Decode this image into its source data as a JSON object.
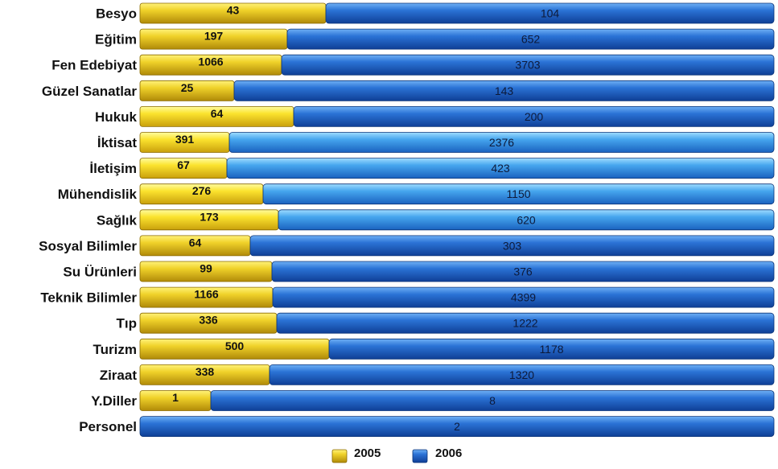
{
  "chart_data": {
    "type": "bar",
    "orientation": "horizontal",
    "stacked": true,
    "normalized": true,
    "categories": [
      "Besyo",
      "Eğitim",
      "Fen Edebiyat",
      "Güzel Sanatlar",
      "Hukuk",
      "İktisat",
      "İletişim",
      "Mühendislik",
      "Sağlık",
      "Sosyal Bilimler",
      "Su Ürünleri",
      "Teknik Bilimler",
      "Tıp",
      "Turizm",
      "Ziraat",
      "Y.Diller",
      "Personel"
    ],
    "series": [
      {
        "name": "2005",
        "values": [
          43,
          197,
          1066,
          25,
          64,
          391,
          67,
          276,
          173,
          64,
          99,
          1166,
          336,
          500,
          338,
          1,
          null
        ]
      },
      {
        "name": "2006",
        "values": [
          104,
          652,
          3703,
          143,
          200,
          2376,
          423,
          1150,
          620,
          303,
          376,
          4399,
          1222,
          1178,
          1320,
          8,
          2
        ]
      }
    ],
    "value_labels_a": [
      "43",
      "197",
      "1066",
      "25",
      "64",
      "391",
      "67",
      "276",
      "173",
      "64",
      "99",
      "1166",
      "336",
      "500",
      "338",
      "1",
      ""
    ],
    "value_labels_b": [
      "104",
      "652",
      "3703",
      "143",
      "200",
      "2376",
      "423",
      "1150",
      "620",
      "303",
      "376",
      "4399",
      "1222",
      "1178",
      "1320",
      "8",
      "2"
    ],
    "legend_position": "bottom",
    "grid": false,
    "colors": {
      "2005": "#e8c21a",
      "2006": "#2a6fd0",
      "2006_light": "#4aa8f0"
    }
  },
  "legend": {
    "items": [
      "2005",
      "2006"
    ]
  }
}
